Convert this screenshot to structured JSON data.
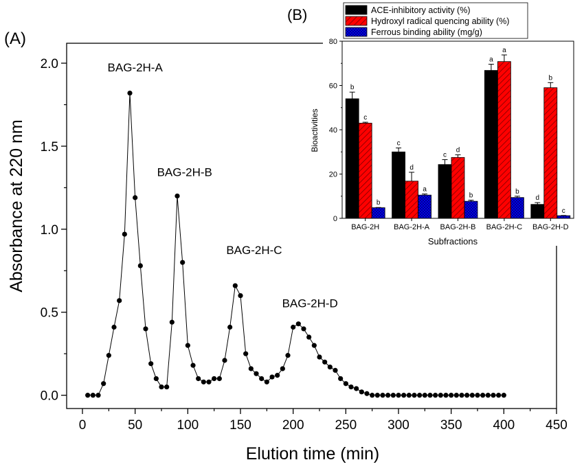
{
  "chart_data": [
    {
      "panel_label": "(A)",
      "type": "line",
      "xlabel": "Elution time (min)",
      "ylabel": "Absorbance at 220 nm",
      "xlim": [
        -15,
        450
      ],
      "ylim": [
        -0.08,
        2.12
      ],
      "xticks": [
        0,
        50,
        100,
        150,
        200,
        250,
        300,
        350,
        400,
        450
      ],
      "yticks": [
        0.0,
        0.5,
        1.0,
        1.5,
        2.0
      ],
      "ytick_labels": [
        "0.0",
        "0.5",
        "1.0",
        "1.5",
        "2.0"
      ],
      "grid": false,
      "annotations": [
        {
          "text": "BAG-2H-A",
          "x": 50,
          "y": 1.95
        },
        {
          "text": "BAG-2H-B",
          "x": 97,
          "y": 1.32
        },
        {
          "text": "BAG-2H-C",
          "x": 163,
          "y": 0.85
        },
        {
          "text": "BAG-2H-D",
          "x": 216,
          "y": 0.53
        }
      ],
      "series": [
        {
          "name": "Absorbance",
          "x": [
            5,
            10,
            15,
            20,
            25,
            30,
            35,
            40,
            45,
            50,
            55,
            60,
            65,
            70,
            75,
            80,
            85,
            90,
            95,
            100,
            105,
            110,
            115,
            120,
            125,
            130,
            135,
            140,
            145,
            150,
            155,
            160,
            165,
            170,
            175,
            180,
            185,
            190,
            195,
            200,
            205,
            210,
            215,
            220,
            225,
            230,
            235,
            240,
            245,
            250,
            255,
            260,
            265,
            270,
            275,
            280,
            285,
            290,
            295,
            300,
            305,
            310,
            315,
            320,
            325,
            330,
            335,
            340,
            345,
            350,
            355,
            360,
            365,
            370,
            375,
            380,
            385,
            390,
            395,
            400
          ],
          "y": [
            0.0,
            0.0,
            0.0,
            0.07,
            0.24,
            0.41,
            0.57,
            0.97,
            1.82,
            1.19,
            0.78,
            0.4,
            0.19,
            0.1,
            0.05,
            0.05,
            0.44,
            1.2,
            0.8,
            0.3,
            0.18,
            0.1,
            0.08,
            0.08,
            0.1,
            0.1,
            0.21,
            0.41,
            0.66,
            0.6,
            0.25,
            0.16,
            0.13,
            0.1,
            0.08,
            0.11,
            0.12,
            0.16,
            0.24,
            0.41,
            0.43,
            0.4,
            0.35,
            0.3,
            0.23,
            0.2,
            0.17,
            0.15,
            0.1,
            0.07,
            0.05,
            0.04,
            0.02,
            0.01,
            0.0,
            0.0,
            0.0,
            0.0,
            0.0,
            0.0,
            0.0,
            0.0,
            0.0,
            0.0,
            0.0,
            0.0,
            0.0,
            0.0,
            0.0,
            0.0,
            0.0,
            0.0,
            0.0,
            0.0,
            0.0,
            0.0,
            0.0,
            0.0,
            0.0,
            0.0
          ]
        }
      ]
    },
    {
      "panel_label": "(B)",
      "type": "bar",
      "xlabel": "Subfractions",
      "ylabel": "Bioactivities",
      "ylim": [
        0,
        80
      ],
      "yticks": [
        0,
        20,
        40,
        60,
        80
      ],
      "ytick_labels": [
        "0",
        "20",
        "40",
        "60",
        "80"
      ],
      "categories": [
        "BAG-2H",
        "BAG-2H-A",
        "BAG-2H-B",
        "BAG-2H-C",
        "BAG-2H-D"
      ],
      "legend_position": "top-left",
      "series": [
        {
          "name": "ACE-inhibitory activity (%)",
          "color": "#000000",
          "pattern": "solid",
          "values": [
            54.0,
            30.0,
            24.3,
            66.8,
            6.3
          ],
          "errors": [
            3.0,
            1.8,
            2.2,
            2.8,
            0.8
          ],
          "letters": [
            "b",
            "c",
            "c",
            "a",
            "d"
          ]
        },
        {
          "name": "Hydroxyl radical quencing ability (%)",
          "color": "#ff0000",
          "pattern": "hatched",
          "values": [
            43.0,
            16.8,
            27.5,
            70.8,
            59.0
          ],
          "errors": [
            0.4,
            4.0,
            1.2,
            3.0,
            2.3
          ],
          "letters": [
            "c",
            "d",
            "d",
            "a",
            "b"
          ]
        },
        {
          "name": "Ferrous binding ability (mg/g)",
          "color": "#0000ff",
          "pattern": "crosshatch",
          "values": [
            4.8,
            10.5,
            7.7,
            9.4,
            1.2
          ],
          "errors": [
            0.1,
            0.5,
            0.5,
            0.6,
            0.1
          ],
          "letters": [
            "b",
            "a",
            "b",
            "b",
            "c"
          ]
        }
      ]
    }
  ]
}
